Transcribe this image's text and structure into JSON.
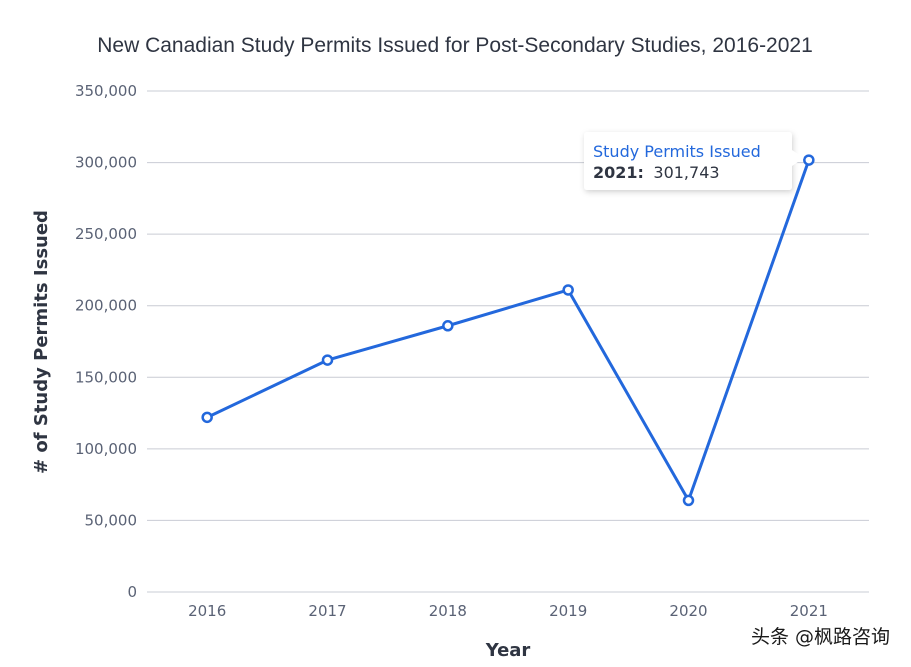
{
  "chart_data": {
    "type": "line",
    "title": "New Canadian Study Permits Issued for Post-Secondary Studies, 2016-2021",
    "xlabel": "Year",
    "ylabel": "# of Study Permits Issued",
    "categories": [
      "2016",
      "2017",
      "2018",
      "2019",
      "2020",
      "2021"
    ],
    "series": [
      {
        "name": "Study Permits Issued",
        "values": [
          122000,
          162000,
          186000,
          211000,
          64000,
          301743
        ],
        "color": "#2368dc"
      }
    ],
    "ylim": [
      0,
      350000
    ],
    "yticks": [
      0,
      50000,
      100000,
      150000,
      200000,
      250000,
      300000,
      350000
    ],
    "ytick_labels": [
      "0",
      "50,000",
      "100,000",
      "150,000",
      "200,000",
      "250,000",
      "300,000",
      "350,000"
    ],
    "grid": true,
    "tooltip": {
      "series_name": "Study Permits Issued",
      "category": "2021:",
      "value": "301,743"
    }
  },
  "watermark": "头条 @枫路咨询"
}
